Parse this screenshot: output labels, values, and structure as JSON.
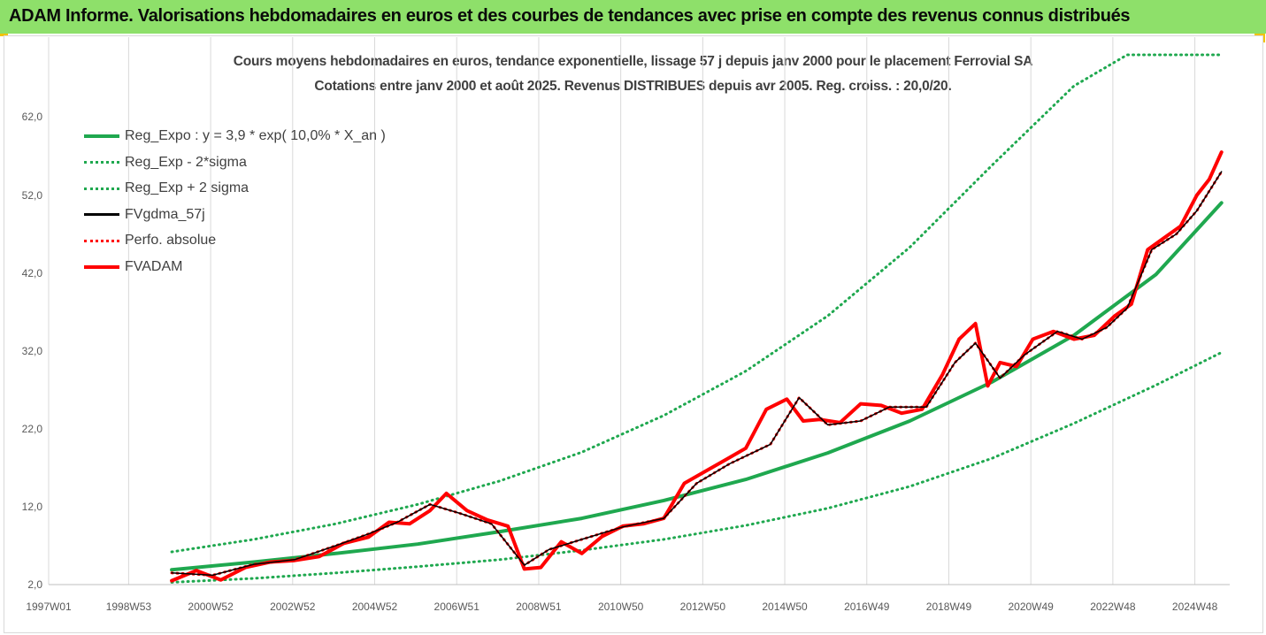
{
  "header": {
    "banner": "ADAM Informe. Valorisations hebdomadaires en euros et des courbes de tendances avec prise en compte des revenus connus distribués"
  },
  "chart_data": {
    "type": "line",
    "title": "Cours moyens hebdomadaires en euros, tendance exponentielle, lissage 57 j depuis janv 2000  pour le placement Ferrovial SA",
    "subtitle": "Cotations entre janv 2000 et août 2025. Revenus DISTRIBUES depuis avr 2005. Reg. croiss. : 20,0/20.",
    "xlabel": "",
    "ylabel": "",
    "x_ticks": [
      "1997W01",
      "1998W53",
      "2000W52",
      "2002W52",
      "2004W52",
      "2006W51",
      "2008W51",
      "2010W50",
      "2012W50",
      "2014W50",
      "2016W49",
      "2018W49",
      "2020W49",
      "2022W48",
      "2024W48"
    ],
    "x_range": [
      1997.0,
      2025.8
    ],
    "y_ticks": [
      "2,0",
      "12,0",
      "22,0",
      "32,0",
      "42,0",
      "52,0",
      "62,0"
    ],
    "ylim": [
      2,
      70
    ],
    "grid": "vertical",
    "legend_position": "top-left",
    "series": [
      {
        "name": "Reg_Expo : y = 3,9 * exp( 10,0% *  X_an )",
        "color": "#1fa84f",
        "style": "solid-thick",
        "x": [
          2000.0,
          2002.0,
          2004.0,
          2006.0,
          2008.0,
          2010.0,
          2012.0,
          2014.0,
          2016.0,
          2018.0,
          2020.0,
          2022.0,
          2024.0,
          2025.6
        ],
        "y": [
          3.9,
          4.9,
          6.0,
          7.2,
          8.8,
          10.5,
          12.8,
          15.5,
          18.9,
          23.0,
          28.0,
          34.0,
          41.8,
          51.0
        ]
      },
      {
        "name": "Reg_Exp - 2*sigma",
        "color": "#1fa84f",
        "style": "dotted",
        "x": [
          2000.0,
          2002.0,
          2004.0,
          2006.0,
          2008.0,
          2010.0,
          2012.0,
          2014.0,
          2016.0,
          2018.0,
          2020.0,
          2022.0,
          2024.0,
          2025.6
        ],
        "y": [
          2.3,
          2.8,
          3.5,
          4.3,
          5.2,
          6.4,
          7.8,
          9.6,
          11.8,
          14.6,
          18.2,
          22.7,
          27.6,
          31.8
        ]
      },
      {
        "name": "Reg_Exp + 2 sigma",
        "color": "#1fa84f",
        "style": "dotted",
        "x": [
          2000.0,
          2002.0,
          2004.0,
          2006.0,
          2008.0,
          2010.0,
          2012.0,
          2014.0,
          2016.0,
          2018.0,
          2020.0,
          2022.0,
          2023.3,
          2024.0,
          2025.6
        ],
        "y": [
          6.2,
          7.8,
          9.8,
          12.3,
          15.3,
          19.0,
          23.7,
          29.4,
          36.5,
          45.3,
          55.8,
          66.0,
          70.0,
          70.0,
          70.0
        ]
      },
      {
        "name": "FVgdma_57j",
        "color": "#000000",
        "style": "solid",
        "x": [
          2000.0,
          2001.0,
          2002.0,
          2003.0,
          2004.0,
          2004.8,
          2005.5,
          2006.3,
          2007.0,
          2007.8,
          2008.6,
          2009.2,
          2010.0,
          2011.0,
          2012.0,
          2012.8,
          2013.6,
          2014.6,
          2015.3,
          2016.0,
          2016.8,
          2017.5,
          2018.4,
          2019.1,
          2019.6,
          2020.2,
          2020.8,
          2021.6,
          2022.2,
          2022.8,
          2023.3,
          2023.9,
          2024.5,
          2025.0,
          2025.6
        ],
        "y": [
          3.5,
          3.2,
          4.6,
          5.2,
          7.0,
          8.5,
          10.0,
          12.3,
          11.2,
          9.8,
          4.5,
          6.5,
          7.8,
          9.4,
          10.5,
          15.0,
          17.5,
          20.0,
          26.0,
          22.5,
          23.0,
          24.8,
          24.8,
          30.5,
          33.0,
          28.5,
          31.5,
          34.5,
          33.5,
          35.0,
          37.5,
          45.0,
          47.0,
          50.0,
          55.0
        ]
      },
      {
        "name": "Perfo. absolue",
        "color": "#ff0000",
        "style": "dotted",
        "x": [
          2000.0,
          2001.0,
          2002.0,
          2003.0,
          2004.0,
          2004.8,
          2005.5,
          2006.3,
          2007.0,
          2007.8,
          2008.6,
          2009.2,
          2010.0,
          2011.0,
          2012.0,
          2012.8,
          2013.6,
          2014.6,
          2015.3,
          2016.0,
          2016.8,
          2017.5,
          2018.4,
          2019.1,
          2019.6,
          2020.2,
          2020.8,
          2021.6,
          2022.2,
          2022.8,
          2023.3,
          2023.9,
          2024.5,
          2025.0,
          2025.6
        ],
        "y": [
          3.5,
          3.2,
          4.6,
          5.2,
          7.0,
          8.5,
          10.0,
          12.3,
          11.2,
          9.8,
          4.5,
          6.5,
          7.8,
          9.4,
          10.5,
          15.0,
          17.5,
          20.0,
          26.0,
          22.5,
          23.0,
          24.8,
          24.8,
          30.5,
          33.0,
          28.5,
          31.5,
          34.5,
          33.5,
          35.0,
          37.5,
          45.0,
          47.0,
          50.0,
          55.0
        ]
      },
      {
        "name": "FVADAM",
        "color": "#ff0000",
        "style": "solid-thick",
        "x": [
          2000.0,
          2000.6,
          2001.2,
          2001.8,
          2002.4,
          2003.0,
          2003.6,
          2004.2,
          2004.8,
          2005.3,
          2005.8,
          2006.3,
          2006.7,
          2007.2,
          2007.7,
          2008.2,
          2008.6,
          2009.0,
          2009.5,
          2010.0,
          2010.5,
          2011.0,
          2011.5,
          2012.0,
          2012.5,
          2013.0,
          2013.5,
          2014.0,
          2014.5,
          2015.0,
          2015.4,
          2015.8,
          2016.3,
          2016.8,
          2017.3,
          2017.8,
          2018.3,
          2018.8,
          2019.2,
          2019.6,
          2019.9,
          2020.2,
          2020.6,
          2021.0,
          2021.5,
          2022.0,
          2022.5,
          2023.0,
          2023.4,
          2023.8,
          2024.2,
          2024.6,
          2025.0,
          2025.3,
          2025.6
        ],
        "y": [
          2.5,
          3.8,
          2.6,
          4.2,
          4.9,
          5.1,
          5.6,
          7.3,
          8.1,
          10.0,
          9.8,
          11.5,
          13.7,
          11.5,
          10.3,
          9.5,
          4.0,
          4.2,
          7.5,
          6.0,
          8.2,
          9.5,
          9.8,
          10.5,
          15.0,
          16.5,
          18.0,
          19.5,
          24.5,
          25.8,
          23.0,
          23.2,
          22.8,
          25.2,
          25.0,
          24.0,
          24.5,
          29.0,
          33.5,
          35.5,
          27.5,
          30.5,
          30.0,
          33.5,
          34.5,
          33.5,
          34.0,
          36.5,
          38.0,
          45.0,
          46.5,
          48.0,
          52.0,
          54.0,
          57.5
        ]
      }
    ]
  }
}
